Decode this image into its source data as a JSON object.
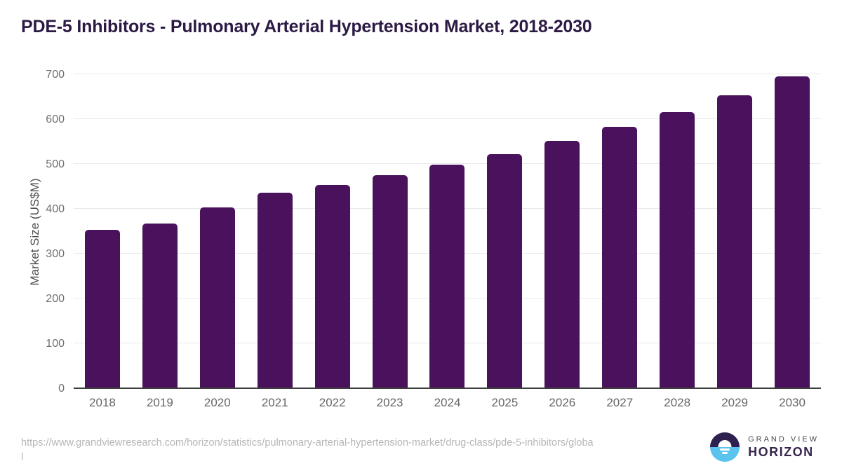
{
  "page": {
    "title": "PDE-5 Inhibitors - Pulmonary Arterial Hypertension Market, 2018-2030"
  },
  "chart_data": {
    "type": "bar",
    "title": "PDE-5 Inhibitors - Pulmonary Arterial Hypertension Market, 2018-2030",
    "categories": [
      "2018",
      "2019",
      "2020",
      "2021",
      "2022",
      "2023",
      "2024",
      "2025",
      "2026",
      "2027",
      "2028",
      "2029",
      "2030"
    ],
    "values": [
      352,
      365,
      401,
      434,
      452,
      473,
      497,
      521,
      550,
      581,
      614,
      652,
      694
    ],
    "xlabel": "",
    "ylabel": "Market Size (US$M)",
    "ylim": [
      0,
      700
    ],
    "yticks": [
      0,
      100,
      200,
      300,
      400,
      500,
      600,
      700
    ],
    "grid": "horizontal",
    "legend": "none",
    "bar_color": "#4a115c"
  },
  "footer": {
    "source_url_line1": "https://www.grandviewresearch.com/horizon/statistics/pulmonary-arterial-hypertension-market/drug-class/pde-5-inhibitors/globa",
    "source_url_line2": "l"
  },
  "logo": {
    "name": "Grand View Horizon",
    "line1": "GRAND VIEW",
    "line2": "HORIZON",
    "dark_color": "#2e2150",
    "blue_color": "#5bc3ee"
  },
  "colors": {
    "bar": "#4a115c",
    "title": "#2c1a45",
    "gridline": "#e9e9e9",
    "axis_text": "#707070"
  }
}
